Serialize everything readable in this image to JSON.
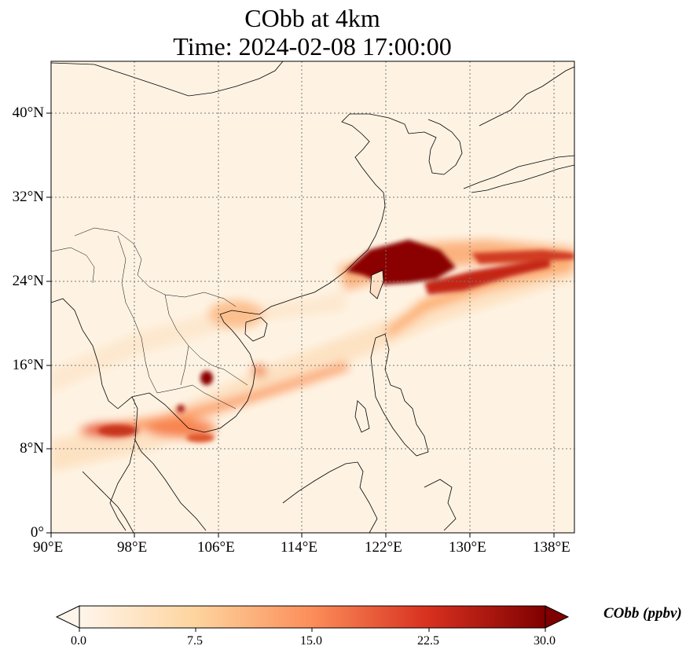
{
  "title_line1": "CObb at 4km",
  "title_line2": "Time: 2024-02-08 17:00:00",
  "lon_ticks": [
    "90°E",
    "98°E",
    "106°E",
    "114°E",
    "122°E",
    "130°E",
    "138°E"
  ],
  "lat_ticks": [
    "0°",
    "8°N",
    "16°N",
    "24°N",
    "32°N",
    "40°N"
  ],
  "colorbar": {
    "label": "CObb (ppbv)",
    "ticks": [
      "0.0",
      "7.5",
      "15.0",
      "22.5",
      "30.0"
    ],
    "min": 0,
    "max": 30,
    "colors": [
      "#fff5eb",
      "#fdd49e",
      "#fc8d59",
      "#d7301f",
      "#7f0000"
    ]
  },
  "map": {
    "lon_range": [
      90,
      140
    ],
    "lat_range": [
      0,
      45
    ],
    "gridlines": "dotted",
    "features": [
      "coastlines",
      "country borders"
    ]
  }
}
